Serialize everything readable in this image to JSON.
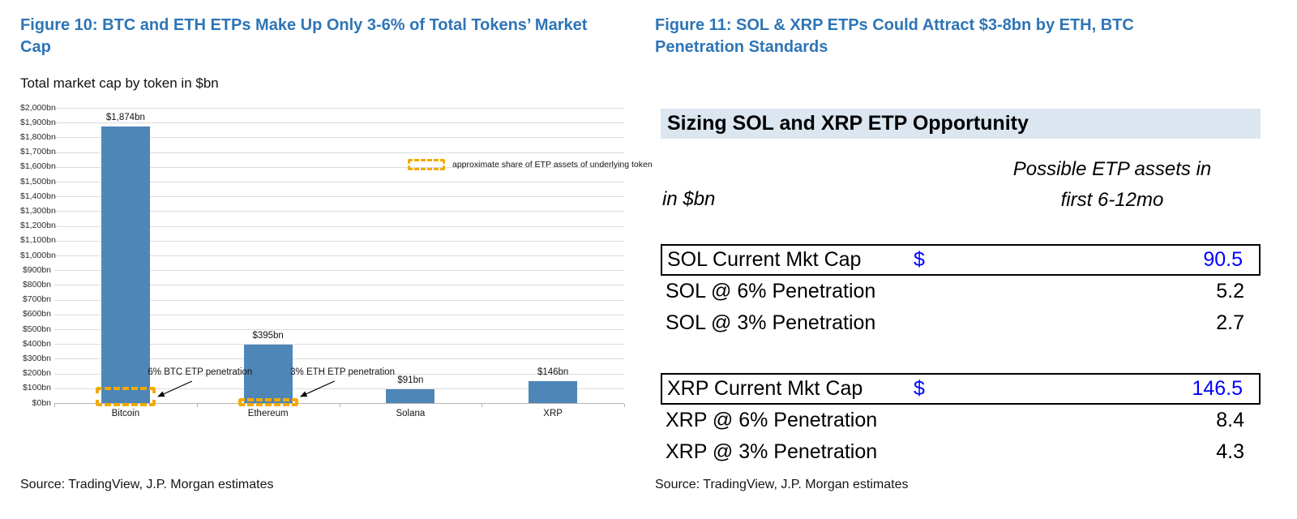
{
  "colors": {
    "figure_title": "#2e75b6",
    "table_header_bg": "#dce6f1",
    "accounting_blue": "#0000ff",
    "bar": "#4e86b8",
    "dashed_box": "#f2a900"
  },
  "left": {
    "figure_title": "Figure 10: BTC and ETH ETPs Make Up Only 3-6% of Total Tokens’ Market Cap",
    "subtitle": "Total market cap by token in $bn",
    "source": "Source: TradingView, J.P. Morgan estimates"
  },
  "right": {
    "figure_title": "Figure 11: SOL & XRP ETPs Could Attract $3-8bn by ETH, BTC Penetration Standards",
    "table_title": "Sizing SOL and XRP ETP Opportunity",
    "unit_label": "in $bn",
    "col_header_line1": "Possible ETP assets in",
    "col_header_line2": "first 6-12mo",
    "rows": [
      {
        "label": "SOL Current Mkt Cap",
        "currency": "$",
        "value": "90.5",
        "boxed": true,
        "blue": true,
        "gap_before": false
      },
      {
        "label": "SOL @ 6% Penetration",
        "currency": "",
        "value": "5.2",
        "boxed": false,
        "blue": false,
        "gap_before": false
      },
      {
        "label": "SOL @ 3% Penetration",
        "currency": "",
        "value": "2.7",
        "boxed": false,
        "blue": false,
        "gap_before": false
      },
      {
        "label": "XRP Current Mkt Cap",
        "currency": "$",
        "value": "146.5",
        "boxed": true,
        "blue": true,
        "gap_before": true
      },
      {
        "label": "XRP @ 6% Penetration",
        "currency": "",
        "value": "8.4",
        "boxed": false,
        "blue": false,
        "gap_before": false
      },
      {
        "label": "XRP @ 3% Penetration",
        "currency": "",
        "value": "4.3",
        "boxed": false,
        "blue": false,
        "gap_before": false
      }
    ],
    "source": "Source: TradingView, J.P. Morgan estimates"
  },
  "chart_data": {
    "type": "bar",
    "title": "Total market cap by token in $bn",
    "xlabel": "",
    "ylabel": "",
    "categories": [
      "Bitcoin",
      "Ethereum",
      "Solana",
      "XRP"
    ],
    "values": [
      1874,
      395,
      91,
      146
    ],
    "bar_labels": [
      "$1,874bn",
      "$395bn",
      "$91bn",
      "$146bn"
    ],
    "ylim": [
      0,
      2000
    ],
    "ytick_step": 100,
    "ytick_labels": [
      "$0bn",
      "$100bn",
      "$200bn",
      "$300bn",
      "$400bn",
      "$500bn",
      "$600bn",
      "$700bn",
      "$800bn",
      "$900bn",
      "$1,000bn",
      "$1,100bn",
      "$1,200bn",
      "$1,300bn",
      "$1,400bn",
      "$1,500bn",
      "$1,600bn",
      "$1,700bn",
      "$1,800bn",
      "$1,900bn",
      "$2,000bn"
    ],
    "grid": true,
    "legend": {
      "label": "approximate share of ETP assets of underlying token",
      "position": "upper right"
    },
    "annotations": [
      {
        "text": "6% BTC ETP penetration",
        "category": "Bitcoin",
        "penetration_pct": 6,
        "approx_value_bn": 112
      },
      {
        "text": "3% ETH ETP penetration",
        "category": "Ethereum",
        "penetration_pct": 3,
        "approx_value_bn": 12
      }
    ]
  }
}
